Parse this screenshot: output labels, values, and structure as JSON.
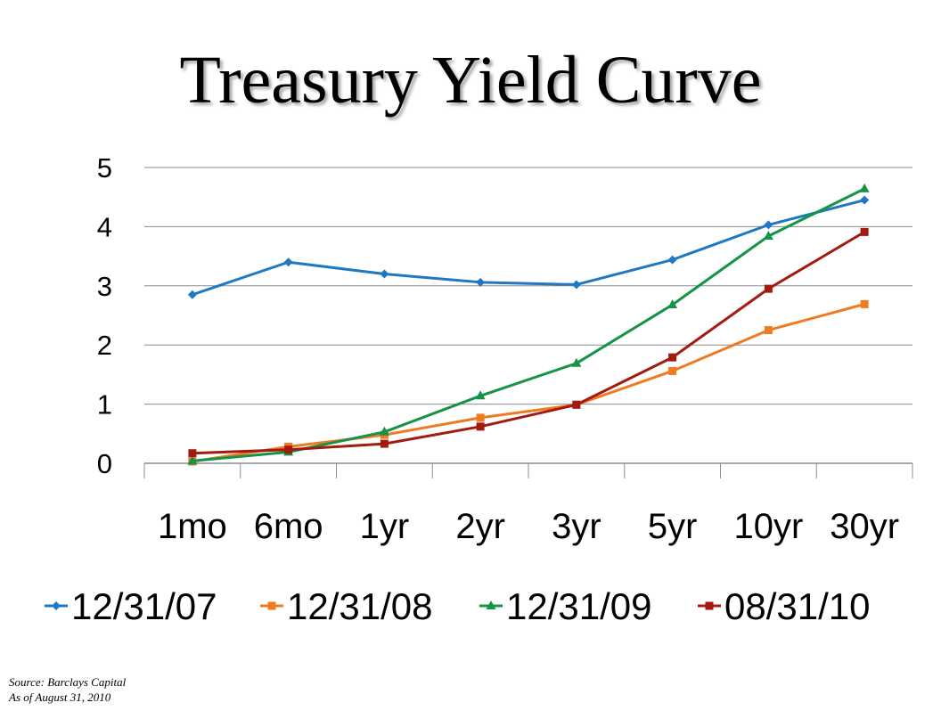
{
  "title": "Treasury Yield Curve",
  "source": {
    "line1": "Source: Barclays Capital",
    "line2": "As of August 31, 2010"
  },
  "chart_data": {
    "type": "line",
    "title": "Treasury Yield Curve",
    "xlabel": "",
    "ylabel": "",
    "categories": [
      "1mo",
      "6mo",
      "1yr",
      "2yr",
      "3yr",
      "5yr",
      "10yr",
      "30yr"
    ],
    "ylim": [
      0,
      5
    ],
    "yticks": [
      0,
      1,
      2,
      3,
      4,
      5
    ],
    "grid": true,
    "legend": "bottom",
    "series": [
      {
        "name": "12/31/07",
        "color": "#1f78c1",
        "marker": "diamond",
        "values": [
          2.85,
          3.4,
          3.2,
          3.06,
          3.02,
          3.44,
          4.03,
          4.45
        ]
      },
      {
        "name": "12/31/08",
        "color": "#f07a22",
        "marker": "square",
        "values": [
          0.03,
          0.28,
          0.48,
          0.77,
          0.99,
          1.56,
          2.25,
          2.69
        ]
      },
      {
        "name": "12/31/09",
        "color": "#159447",
        "marker": "triangle",
        "values": [
          0.04,
          0.19,
          0.53,
          1.14,
          1.69,
          2.68,
          3.84,
          4.64
        ]
      },
      {
        "name": "08/31/10",
        "color": "#a31a0f",
        "marker": "square",
        "values": [
          0.17,
          0.23,
          0.33,
          0.62,
          0.99,
          1.79,
          2.95,
          3.91
        ]
      }
    ]
  }
}
